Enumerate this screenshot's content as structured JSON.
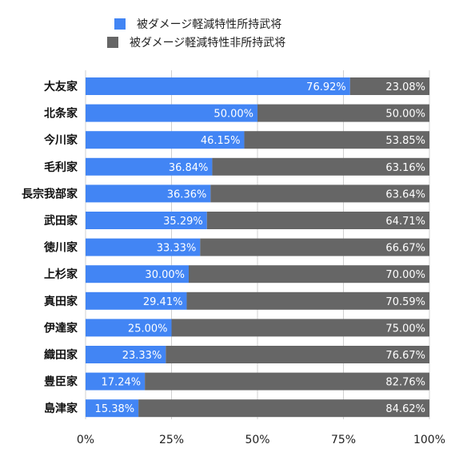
{
  "chart_data": {
    "type": "bar",
    "orientation": "horizontal",
    "stacked": "percent",
    "categories": [
      "大友家",
      "北条家",
      "今川家",
      "毛利家",
      "長宗我部家",
      "武田家",
      "徳川家",
      "上杉家",
      "真田家",
      "伊達家",
      "織田家",
      "豊臣家",
      "島津家"
    ],
    "series": [
      {
        "name": "被ダメージ軽減特性所持武将",
        "color": "#4285f4",
        "values": [
          76.92,
          50.0,
          46.15,
          36.84,
          36.36,
          35.29,
          33.33,
          30.0,
          29.41,
          25.0,
          23.33,
          17.24,
          15.38
        ],
        "labels": [
          "76.92%",
          "50.00%",
          "46.15%",
          "36.84%",
          "36.36%",
          "35.29%",
          "33.33%",
          "30.00%",
          "29.41%",
          "25.00%",
          "23.33%",
          "17.24%",
          "15.38%"
        ]
      },
      {
        "name": "被ダメージ軽減特性非所持武将",
        "color": "#666666",
        "values": [
          23.08,
          50.0,
          53.85,
          63.16,
          63.64,
          64.71,
          66.67,
          70.0,
          70.59,
          75.0,
          76.67,
          82.76,
          84.62
        ],
        "labels": [
          "23.08%",
          "50.00%",
          "53.85%",
          "63.16%",
          "63.64%",
          "64.71%",
          "66.67%",
          "70.00%",
          "70.59%",
          "75.00%",
          "76.67%",
          "82.76%",
          "84.62%"
        ]
      }
    ],
    "x_ticks": [
      "0%",
      "25%",
      "50%",
      "75%",
      "100%"
    ],
    "xlim": [
      0,
      100
    ],
    "grid": true,
    "legend": "top-center"
  }
}
